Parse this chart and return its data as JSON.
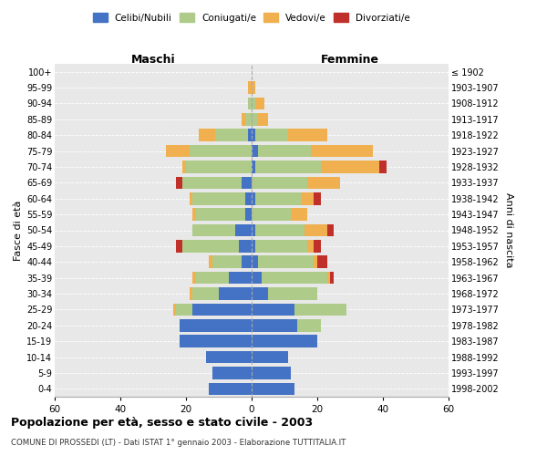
{
  "age_groups": [
    "0-4",
    "5-9",
    "10-14",
    "15-19",
    "20-24",
    "25-29",
    "30-34",
    "35-39",
    "40-44",
    "45-49",
    "50-54",
    "55-59",
    "60-64",
    "65-69",
    "70-74",
    "75-79",
    "80-84",
    "85-89",
    "90-94",
    "95-99",
    "100+"
  ],
  "birth_years": [
    "1998-2002",
    "1993-1997",
    "1988-1992",
    "1983-1987",
    "1978-1982",
    "1973-1977",
    "1968-1972",
    "1963-1967",
    "1958-1962",
    "1953-1957",
    "1948-1952",
    "1943-1947",
    "1938-1942",
    "1933-1937",
    "1928-1932",
    "1923-1927",
    "1918-1922",
    "1913-1917",
    "1908-1912",
    "1903-1907",
    "≤ 1902"
  ],
  "male": {
    "celibi": [
      13,
      12,
      14,
      22,
      22,
      18,
      10,
      7,
      3,
      4,
      5,
      2,
      2,
      3,
      0,
      0,
      1,
      0,
      0,
      0,
      0
    ],
    "coniugati": [
      0,
      0,
      0,
      0,
      0,
      5,
      8,
      10,
      9,
      17,
      13,
      15,
      16,
      18,
      20,
      19,
      10,
      2,
      1,
      0,
      0
    ],
    "vedovi": [
      0,
      0,
      0,
      0,
      0,
      1,
      1,
      1,
      1,
      0,
      0,
      1,
      1,
      0,
      1,
      7,
      5,
      1,
      0,
      1,
      0
    ],
    "divorziati": [
      0,
      0,
      0,
      0,
      0,
      0,
      0,
      0,
      0,
      2,
      0,
      0,
      0,
      2,
      0,
      0,
      0,
      0,
      0,
      0,
      0
    ]
  },
  "female": {
    "nubili": [
      13,
      12,
      11,
      20,
      14,
      13,
      5,
      3,
      2,
      1,
      1,
      0,
      1,
      0,
      1,
      2,
      1,
      0,
      0,
      0,
      0
    ],
    "coniugate": [
      0,
      0,
      0,
      0,
      7,
      16,
      15,
      20,
      17,
      16,
      15,
      12,
      14,
      17,
      20,
      16,
      10,
      2,
      1,
      0,
      0
    ],
    "vedove": [
      0,
      0,
      0,
      0,
      0,
      0,
      0,
      1,
      1,
      2,
      7,
      5,
      4,
      10,
      18,
      19,
      12,
      3,
      3,
      1,
      0
    ],
    "divorziate": [
      0,
      0,
      0,
      0,
      0,
      0,
      0,
      1,
      3,
      2,
      2,
      0,
      2,
      0,
      2,
      0,
      0,
      0,
      0,
      0,
      0
    ]
  },
  "colors": {
    "celibi": "#4472C4",
    "coniugati": "#AECB8A",
    "vedovi": "#F0B050",
    "divorziati": "#C0302A"
  },
  "xlim": 60,
  "title": "Popolazione per età, sesso e stato civile - 2003",
  "subtitle": "COMUNE DI PROSSEDI (LT) - Dati ISTAT 1° gennaio 2003 - Elaborazione TUTTITALIA.IT",
  "ylabel_left": "Fasce di età",
  "ylabel_right": "Anni di nascita",
  "xlabel_left": "Maschi",
  "xlabel_right": "Femmine"
}
